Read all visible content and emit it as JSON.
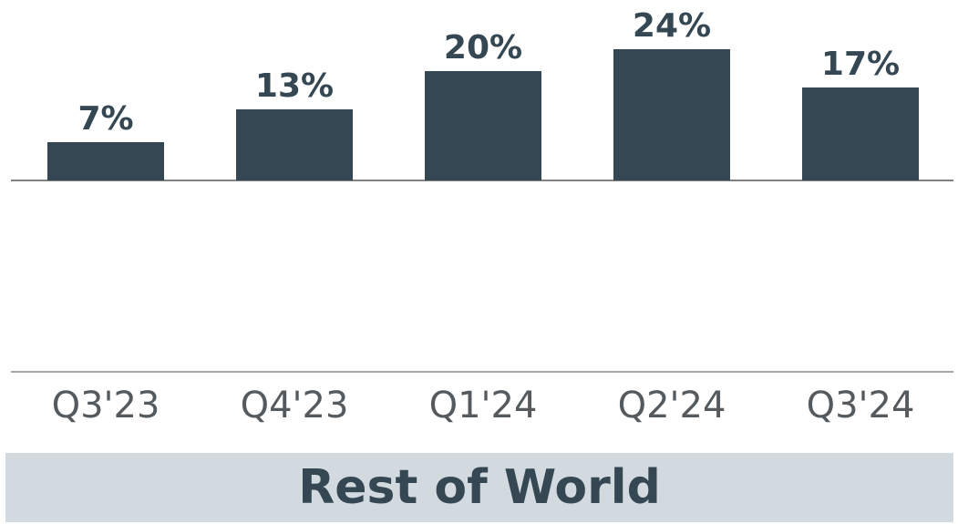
{
  "chart_data": {
    "type": "bar",
    "title": "Rest of World",
    "categories": [
      "Q3'23",
      "Q4'23",
      "Q1'24",
      "Q2'24",
      "Q3'24"
    ],
    "values": [
      7,
      13,
      20,
      24,
      17
    ],
    "value_labels": [
      "7%",
      "13%",
      "20%",
      "24%",
      "17%"
    ],
    "unit": "%",
    "xlabel": "",
    "ylabel": "",
    "ylim": [
      0,
      24
    ],
    "grid": false,
    "legend": "none",
    "colors": {
      "bar": "#344752",
      "baseline": "#595959",
      "band": "#d2dae0"
    }
  }
}
